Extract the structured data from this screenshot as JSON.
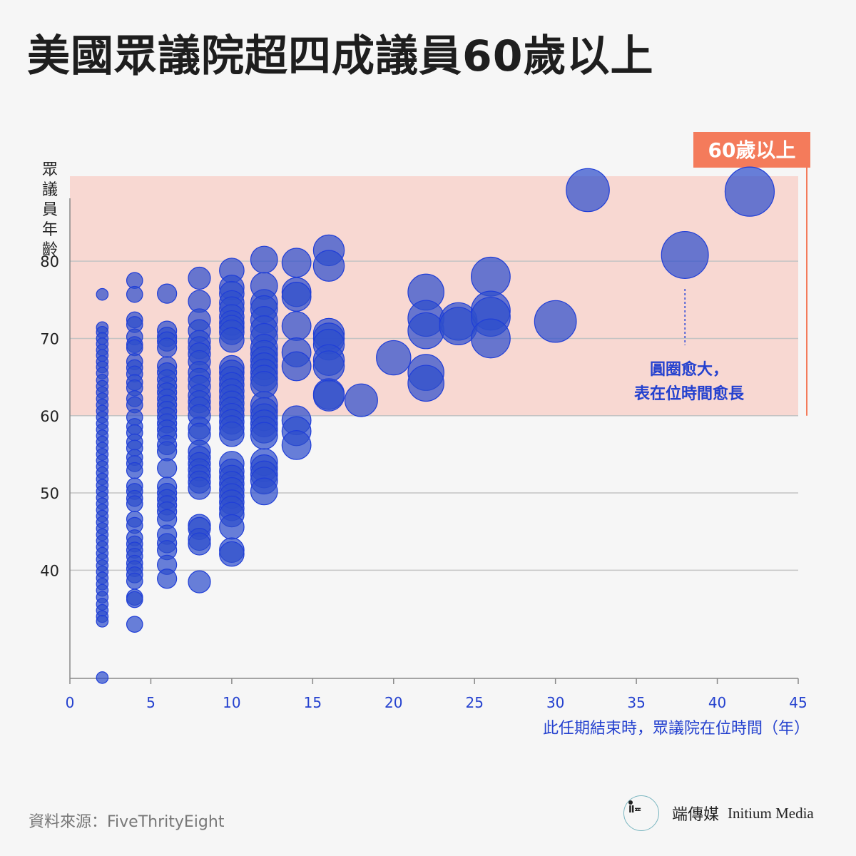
{
  "title": "美國眾議院超四成議員60歲以上",
  "source": "資料來源：FiveThrityEight",
  "logo": {
    "name": "端傳媒",
    "english": "Initium Media"
  },
  "colors": {
    "bubble_fill": "#2f4fcc",
    "bubble_stroke": "#1f3ed8",
    "band": "#f8d8d2",
    "badge": "#f47b5b",
    "axis_text": "#2441cf"
  },
  "chart_data": {
    "type": "scatter",
    "xlabel": "此任期結束時，眾議院在位時間（年）",
    "ylabel": "眾議員年齡",
    "xlim": [
      0,
      45
    ],
    "ylim": [
      26,
      91
    ],
    "xticks": [
      "0",
      "5",
      "10",
      "15",
      "20",
      "25",
      "30",
      "35",
      "40",
      "45"
    ],
    "yticks": [
      "40",
      "50",
      "60",
      "70",
      "80"
    ],
    "highlight_band": {
      "label": "60歲以上",
      "from": 60,
      "to": 91
    },
    "annotation": {
      "text_line1": "圓圈愈大，",
      "text_line2": "表在位時間愈長",
      "x": 38,
      "y": 70
    },
    "points": [
      [
        2,
        75.7
      ],
      [
        2,
        71.4
      ],
      [
        2,
        70.8
      ],
      [
        2,
        70
      ],
      [
        2,
        69.3
      ],
      [
        2,
        68.5
      ],
      [
        2,
        67.8
      ],
      [
        2,
        67
      ],
      [
        2,
        66.3
      ],
      [
        2,
        65.5
      ],
      [
        2,
        64.6
      ],
      [
        2,
        63.8
      ],
      [
        2,
        63
      ],
      [
        2,
        62.2
      ],
      [
        2,
        61.4
      ],
      [
        2,
        60.6
      ],
      [
        2,
        59.8
      ],
      [
        2,
        59
      ],
      [
        2,
        58.2
      ],
      [
        2,
        57.4
      ],
      [
        2,
        56.6
      ],
      [
        2,
        55.8
      ],
      [
        2,
        55
      ],
      [
        2,
        54.2
      ],
      [
        2,
        53.4
      ],
      [
        2,
        52.6
      ],
      [
        2,
        51.8
      ],
      [
        2,
        51
      ],
      [
        2,
        50.2
      ],
      [
        2,
        49.4
      ],
      [
        2,
        48.6
      ],
      [
        2,
        47.8
      ],
      [
        2,
        47
      ],
      [
        2,
        46.2
      ],
      [
        2,
        45.4
      ],
      [
        2,
        44.6
      ],
      [
        2,
        43.8
      ],
      [
        2,
        43
      ],
      [
        2,
        42.2
      ],
      [
        2,
        41.4
      ],
      [
        2,
        40.6
      ],
      [
        2,
        39.8
      ],
      [
        2,
        39
      ],
      [
        2,
        38.2
      ],
      [
        2,
        37.4
      ],
      [
        2,
        36.5
      ],
      [
        2,
        35.6
      ],
      [
        2,
        34.8
      ],
      [
        2,
        34
      ],
      [
        2,
        33.4
      ],
      [
        2,
        26.1
      ],
      [
        4,
        77.5
      ],
      [
        4,
        75.7
      ],
      [
        4,
        72.4
      ],
      [
        4,
        71.8
      ],
      [
        4,
        70.2
      ],
      [
        4,
        69.2
      ],
      [
        4,
        68.8
      ],
      [
        4,
        67
      ],
      [
        4,
        66.2
      ],
      [
        4,
        65.4
      ],
      [
        4,
        64.3
      ],
      [
        4,
        63.6
      ],
      [
        4,
        62.2
      ],
      [
        4,
        61.4
      ],
      [
        4,
        59.8
      ],
      [
        4,
        58.6
      ],
      [
        4,
        57.8
      ],
      [
        4,
        56.6
      ],
      [
        4,
        55.8
      ],
      [
        4,
        54.6
      ],
      [
        4,
        53.8
      ],
      [
        4,
        52.9
      ],
      [
        4,
        50.9
      ],
      [
        4,
        50.2
      ],
      [
        4,
        49.3
      ],
      [
        4,
        48.6
      ],
      [
        4,
        46.6
      ],
      [
        4,
        45.8
      ],
      [
        4,
        44.2
      ],
      [
        4,
        43.4
      ],
      [
        4,
        42.6
      ],
      [
        4,
        41.8
      ],
      [
        4,
        40.9
      ],
      [
        4,
        40.2
      ],
      [
        4,
        39.4
      ],
      [
        4,
        38.6
      ],
      [
        4,
        36.5
      ],
      [
        4,
        36.2
      ],
      [
        4,
        33
      ],
      [
        6,
        75.8
      ],
      [
        6,
        71
      ],
      [
        6,
        70.2
      ],
      [
        6,
        69.6
      ],
      [
        6,
        68.8
      ],
      [
        6,
        66.4
      ],
      [
        6,
        65.6
      ],
      [
        6,
        64.7
      ],
      [
        6,
        63.8
      ],
      [
        6,
        63
      ],
      [
        6,
        62.2
      ],
      [
        6,
        61.4
      ],
      [
        6,
        60.6
      ],
      [
        6,
        59.8
      ],
      [
        6,
        59
      ],
      [
        6,
        58.2
      ],
      [
        6,
        57.4
      ],
      [
        6,
        56.2
      ],
      [
        6,
        55.4
      ],
      [
        6,
        53.2
      ],
      [
        6,
        50.8
      ],
      [
        6,
        50
      ],
      [
        6,
        49.2
      ],
      [
        6,
        48.4
      ],
      [
        6,
        47.6
      ],
      [
        6,
        46.6
      ],
      [
        6,
        44.6
      ],
      [
        6,
        43.5
      ],
      [
        6,
        42.6
      ],
      [
        6,
        40.7
      ],
      [
        6,
        38.9
      ],
      [
        8,
        77.8
      ],
      [
        8,
        74.8
      ],
      [
        8,
        72.4
      ],
      [
        8,
        71
      ],
      [
        8,
        69.6
      ],
      [
        8,
        68.8
      ],
      [
        8,
        68
      ],
      [
        8,
        67
      ],
      [
        8,
        65.6
      ],
      [
        8,
        64.7
      ],
      [
        8,
        63.8
      ],
      [
        8,
        62.6
      ],
      [
        8,
        61.8
      ],
      [
        8,
        61
      ],
      [
        8,
        60
      ],
      [
        8,
        58.4
      ],
      [
        8,
        57.6
      ],
      [
        8,
        55.4
      ],
      [
        8,
        54.6
      ],
      [
        8,
        53.8
      ],
      [
        8,
        53
      ],
      [
        8,
        52.2
      ],
      [
        8,
        51.4
      ],
      [
        8,
        50.6
      ],
      [
        8,
        45.8
      ],
      [
        8,
        45.4
      ],
      [
        8,
        44
      ],
      [
        8,
        43.4
      ],
      [
        8,
        38.5
      ],
      [
        10,
        78.8
      ],
      [
        10,
        76.6
      ],
      [
        10,
        75.8
      ],
      [
        10,
        74.6
      ],
      [
        10,
        73.8
      ],
      [
        10,
        72.8
      ],
      [
        10,
        72
      ],
      [
        10,
        71.4
      ],
      [
        10,
        70.8
      ],
      [
        10,
        69.8
      ],
      [
        10,
        66.2
      ],
      [
        10,
        65.6
      ],
      [
        10,
        64.8
      ],
      [
        10,
        64
      ],
      [
        10,
        63.2
      ],
      [
        10,
        62.4
      ],
      [
        10,
        61.6
      ],
      [
        10,
        60.8
      ],
      [
        10,
        60
      ],
      [
        10,
        59.2
      ],
      [
        10,
        58.4
      ],
      [
        10,
        57.6
      ],
      [
        10,
        53.8
      ],
      [
        10,
        52.8
      ],
      [
        10,
        52
      ],
      [
        10,
        51.2
      ],
      [
        10,
        50.4
      ],
      [
        10,
        49.6
      ],
      [
        10,
        48.8
      ],
      [
        10,
        48
      ],
      [
        10,
        47.2
      ],
      [
        10,
        45.6
      ],
      [
        10,
        42.6
      ],
      [
        10,
        42.1
      ],
      [
        12,
        80.2
      ],
      [
        12,
        76.8
      ],
      [
        12,
        74.6
      ],
      [
        12,
        73.8
      ],
      [
        12,
        72.4
      ],
      [
        12,
        71.2
      ],
      [
        12,
        70.2
      ],
      [
        12,
        68.8
      ],
      [
        12,
        68
      ],
      [
        12,
        67.2
      ],
      [
        12,
        66.4
      ],
      [
        12,
        65.6
      ],
      [
        12,
        64.8
      ],
      [
        12,
        64
      ],
      [
        12,
        61.4
      ],
      [
        12,
        60.6
      ],
      [
        12,
        59.8
      ],
      [
        12,
        59
      ],
      [
        12,
        58.2
      ],
      [
        12,
        57.4
      ],
      [
        12,
        54
      ],
      [
        12,
        53.2
      ],
      [
        12,
        52.4
      ],
      [
        12,
        51.6
      ],
      [
        12,
        50.2
      ],
      [
        14,
        79.8
      ],
      [
        14,
        76
      ],
      [
        14,
        75.4
      ],
      [
        14,
        71.6
      ],
      [
        14,
        68.2
      ],
      [
        14,
        66.4
      ],
      [
        14,
        59.4
      ],
      [
        14,
        58
      ],
      [
        14,
        56.2
      ],
      [
        16,
        81.4
      ],
      [
        16,
        79.4
      ],
      [
        16,
        70.6
      ],
      [
        16,
        70
      ],
      [
        16,
        69.2
      ],
      [
        16,
        67.2
      ],
      [
        16,
        66.4
      ],
      [
        16,
        62.8
      ],
      [
        16,
        62.6
      ],
      [
        18,
        62
      ],
      [
        20,
        67.5
      ],
      [
        22,
        76
      ],
      [
        22,
        72.6
      ],
      [
        22,
        71
      ],
      [
        22,
        65.6
      ],
      [
        22,
        64.2
      ],
      [
        24,
        72.2
      ],
      [
        24,
        71.6
      ],
      [
        26,
        78
      ],
      [
        26,
        73.6
      ],
      [
        26,
        72.8
      ],
      [
        26,
        70
      ],
      [
        30,
        72.2
      ],
      [
        32,
        89.2
      ],
      [
        38,
        80.8
      ],
      [
        42,
        89
      ]
    ]
  }
}
